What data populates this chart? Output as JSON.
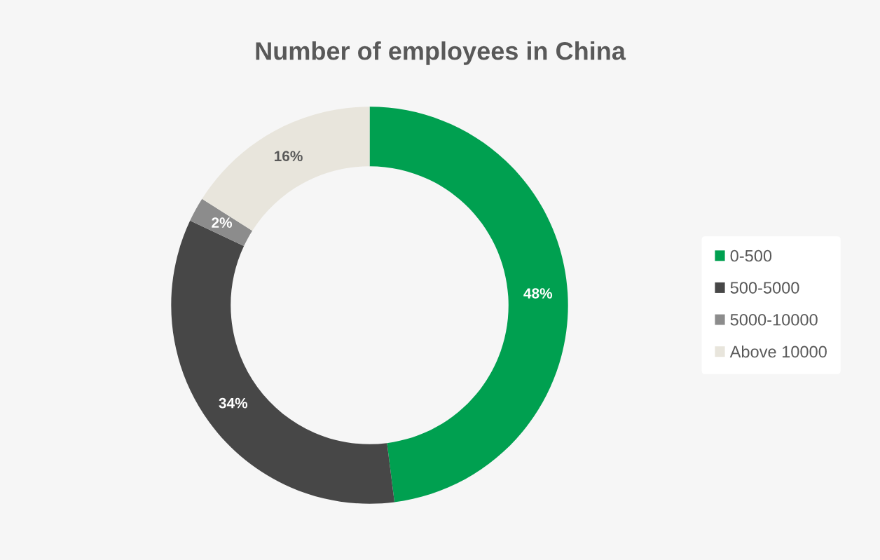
{
  "chart_data": {
    "type": "donut",
    "title": "Number of employees in China",
    "categories": [
      "0-500",
      "500-5000",
      "5000-10000",
      "Above 10000"
    ],
    "values": [
      48,
      34,
      2,
      16
    ],
    "colors": [
      "#00a050",
      "#474747",
      "#8c8c8c",
      "#e8e5dc"
    ],
    "value_labels": [
      "48%",
      "34%",
      "2%",
      "16%"
    ],
    "legend": "right"
  }
}
